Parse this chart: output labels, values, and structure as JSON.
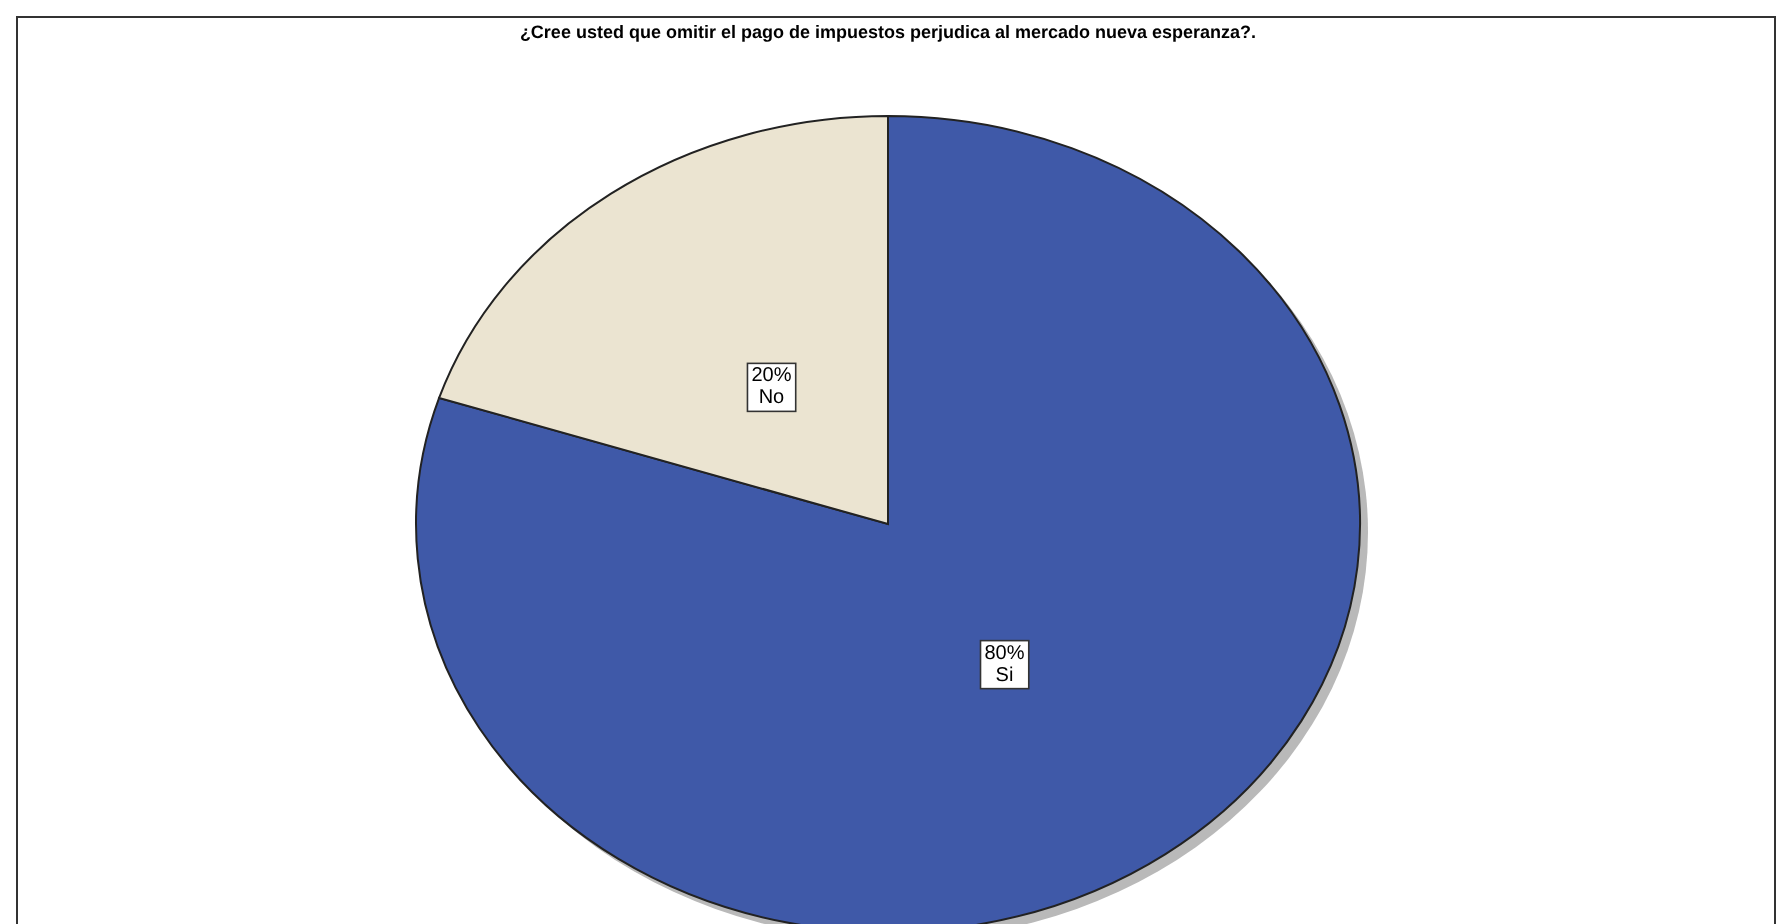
{
  "chart_data": {
    "type": "pie",
    "title": "¿Cree usted que omitir el pago de impuestos perjudica al mercado nueva esperanza?.",
    "categories": [
      "Si",
      "No"
    ],
    "values": [
      80,
      20
    ],
    "value_labels": [
      "80%",
      "20%"
    ],
    "colors": [
      "#3f59a8",
      "#ebe4d1"
    ]
  }
}
